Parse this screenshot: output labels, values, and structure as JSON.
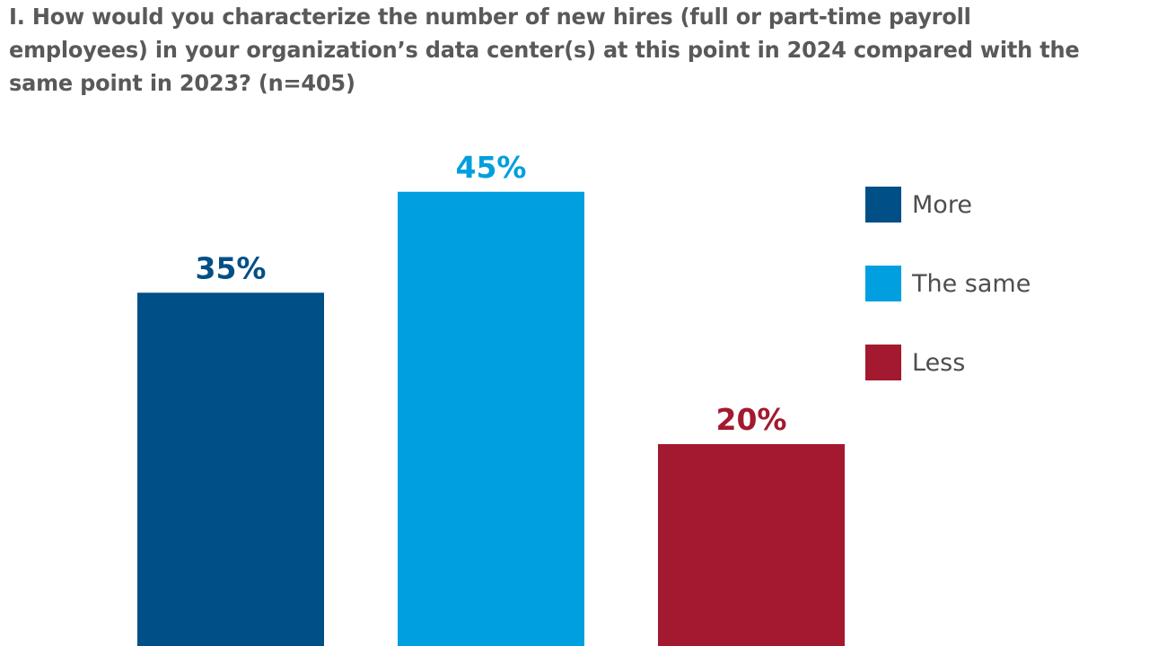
{
  "chart_data": {
    "type": "bar",
    "title": "I. How would you characterize the number of new hires (full or part-time payroll employees) in your organization’s data center(s) at this point in 2024 compared with the same point in 2023? (n=405)",
    "categories": [
      "More",
      "The same",
      "Less"
    ],
    "values": [
      35,
      45,
      20
    ],
    "value_labels": [
      "35%",
      "45%",
      "20%"
    ],
    "colors": [
      "#004f86",
      "#009fdf",
      "#a3192f"
    ],
    "unit": "%",
    "ylim": [
      0,
      100
    ],
    "grid": false,
    "axes_visible": false,
    "legend_position": "right",
    "legend": [
      {
        "label": "More",
        "color": "#004f86"
      },
      {
        "label": "The same",
        "color": "#009fdf"
      },
      {
        "label": "Less",
        "color": "#a3192f"
      }
    ]
  }
}
